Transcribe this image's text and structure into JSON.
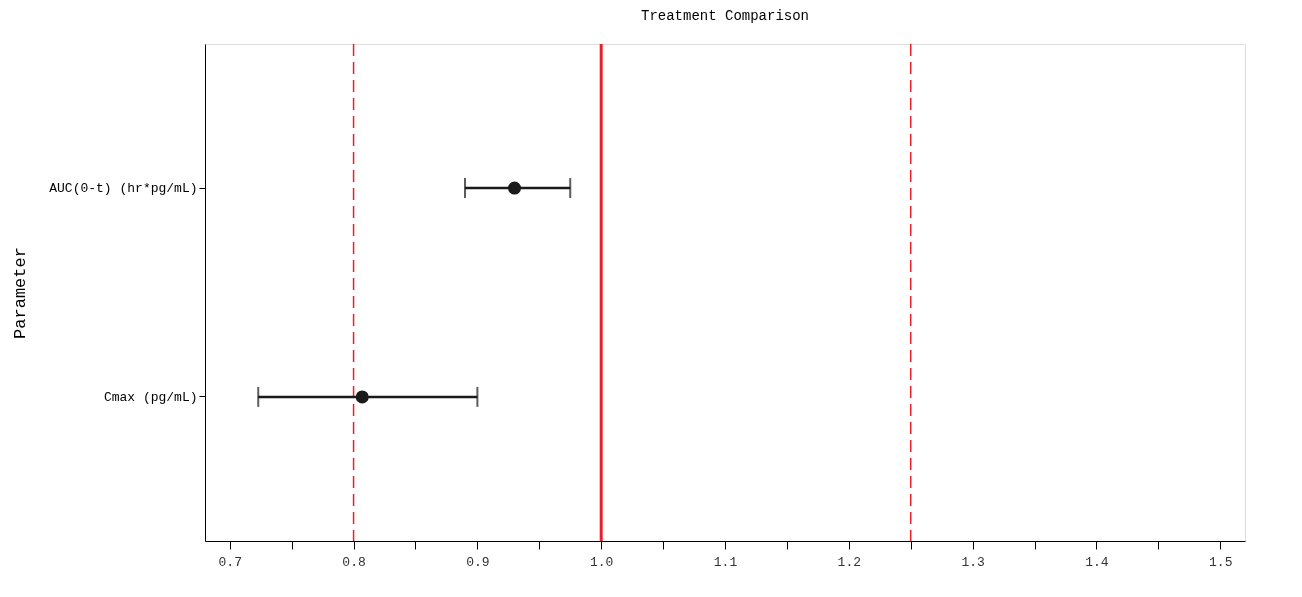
{
  "chart_data": {
    "type": "scatter",
    "orientation": "horizontal",
    "title": "Treatment Comparison",
    "ylabel": "Parameter",
    "categories": [
      "AUC(0-t) (hr*pg/mL)",
      "Cmax (pg/mL)"
    ],
    "series": [
      {
        "color": "#1a1a1a",
        "values": [
          0.93,
          0.807
        ],
        "errors": [
          [
            0.89,
            0.975
          ],
          [
            0.723,
            0.9
          ]
        ]
      }
    ],
    "marker": "circle",
    "grid": false,
    "xlim": [
      0.68,
      1.52
    ],
    "xticks": [
      {
        "value": 0.7,
        "label": "0.7"
      },
      {
        "value": 0.75,
        "label": null
      },
      {
        "value": 0.8,
        "label": "0.8"
      },
      {
        "value": 0.85,
        "label": null
      },
      {
        "value": 0.9,
        "label": "0.9"
      },
      {
        "value": 0.95,
        "label": null
      },
      {
        "value": 1.0,
        "label": "1.0"
      },
      {
        "value": 1.05,
        "label": null
      },
      {
        "value": 1.1,
        "label": "1.1"
      },
      {
        "value": 1.15,
        "label": null
      },
      {
        "value": 1.2,
        "label": "1.2"
      },
      {
        "value": 1.25,
        "label": null
      },
      {
        "value": 1.3,
        "label": "1.3"
      },
      {
        "value": 1.35,
        "label": null
      },
      {
        "value": 1.4,
        "label": "1.4"
      },
      {
        "value": 1.45,
        "label": null
      },
      {
        "value": 1.5,
        "label": "1.5"
      }
    ],
    "ref_lines": [
      {
        "axis": "x",
        "value": 0.8,
        "color": "#e8202a",
        "line_style": "dashed"
      },
      {
        "axis": "x",
        "value": 1.0,
        "color": "#e8202a",
        "line_style": "solid"
      },
      {
        "axis": "x",
        "value": 1.25,
        "color": "#e8202a",
        "line_style": "dashed"
      }
    ]
  }
}
